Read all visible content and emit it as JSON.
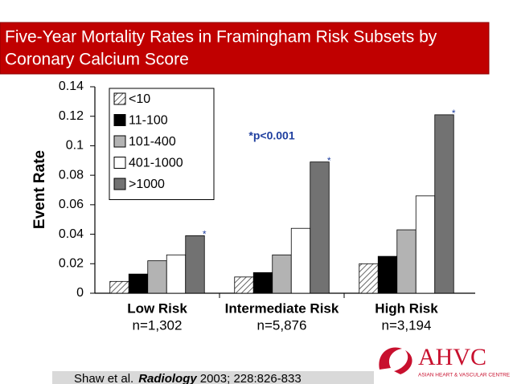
{
  "chart_data": {
    "type": "bar",
    "title": [
      "Five-Year Mortality Rates in Framingham Risk Subsets by",
      "Coronary Calcium Score"
    ],
    "y_label": "Event Rate",
    "categories": [
      "Low Risk",
      "Intermediate Risk",
      "High Risk"
    ],
    "category_sublabels": [
      "n=1,302",
      "n=5,876",
      "n=3,194"
    ],
    "series": [
      {
        "name": "<10",
        "color": "#ffffff",
        "hatch": true,
        "values": [
          0.008,
          0.011,
          0.02
        ]
      },
      {
        "name": "11-100",
        "color": "#000000",
        "values": [
          0.013,
          0.014,
          0.025
        ]
      },
      {
        "name": "101-400",
        "color": "#b3b3b3",
        "values": [
          0.022,
          0.026,
          0.043
        ]
      },
      {
        "name": "401-1000",
        "color": "#ffffff",
        "values": [
          0.026,
          0.044,
          0.066
        ]
      },
      {
        "name": ">1000",
        "color": "#727272",
        "values": [
          0.039,
          0.089,
          0.121
        ],
        "marker_labels": [
          "*",
          "*",
          "*"
        ]
      }
    ],
    "annotation": "*p<0.001",
    "ylim": [
      0,
      0.14
    ],
    "yticks": [
      0,
      0.02,
      0.04,
      0.06,
      0.08,
      0.1,
      0.12,
      0.14
    ],
    "legend": "upper left",
    "citation": {
      "authors": "Shaw et al.",
      "journal": "Radiology",
      "details": "2003; 228:826-833"
    },
    "logo": {
      "name": "AHVC",
      "subtitle": "ASIAN HEART & VASCULAR CENTRE"
    }
  }
}
